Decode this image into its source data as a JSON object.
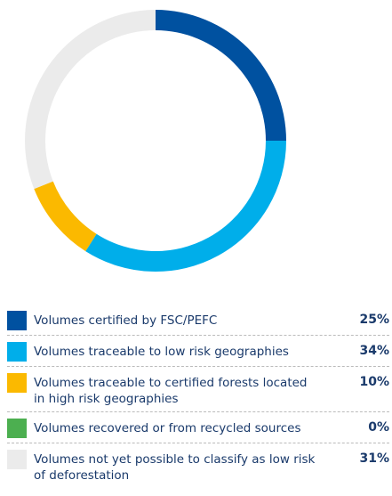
{
  "chart_data": {
    "type": "donut",
    "categories": [
      "Volumes certified by FSC/PEFC",
      "Volumes traceable to low risk geographies",
      "Volumes traceable to certified forests located in high risk geographies",
      "Volumes recovered or from recycled sources",
      "Volumes not yet possible to classify as low risk of deforestation"
    ],
    "values": [
      25,
      34,
      10,
      0,
      31
    ],
    "value_labels": [
      "25%",
      "34%",
      "10%",
      "0%",
      "31%"
    ],
    "colors": [
      "#0051a0",
      "#00aeea",
      "#fbb900",
      "#4caf50",
      "#ebebeb"
    ]
  }
}
